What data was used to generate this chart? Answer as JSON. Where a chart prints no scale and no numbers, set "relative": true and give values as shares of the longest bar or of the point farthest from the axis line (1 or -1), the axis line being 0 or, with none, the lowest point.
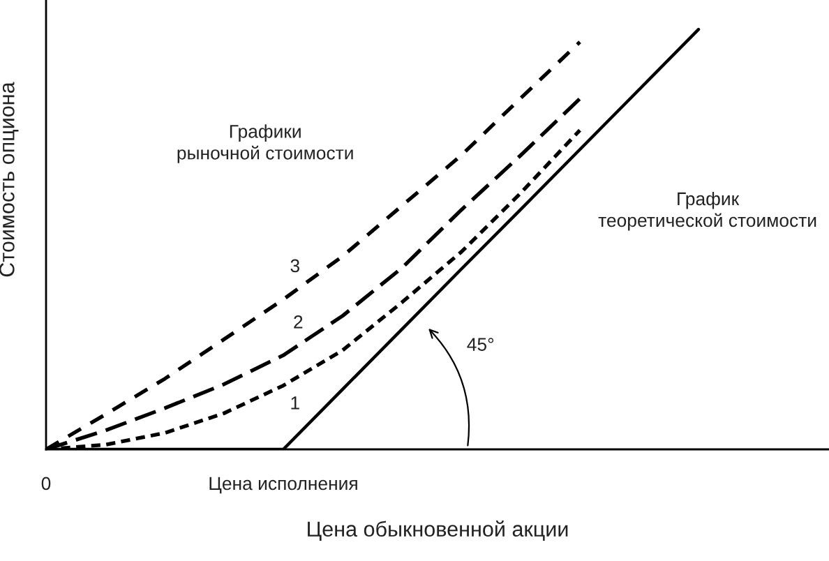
{
  "chart_data": {
    "type": "line",
    "relative": true,
    "xlabel": "Цена обыкновенной акции",
    "ylabel": "Стоимость опциона",
    "categories": [
      "0",
      null,
      null,
      null,
      "Цена исполнения",
      null,
      null,
      null,
      null,
      null,
      null,
      null,
      null,
      null
    ],
    "tick_labels": "x",
    "grid": false,
    "legend": false,
    "marker": "none",
    "series": [
      {
        "name": "3",
        "color": "#000000",
        "line_style": "dashed",
        "values": [
          0,
          0.083,
          0.168,
          0.262,
          0.357,
          0.46,
          0.58,
          0.7,
          0.836,
          0.97,
          null,
          null,
          null,
          null
        ]
      },
      {
        "name": "2",
        "color": "#000000",
        "line_style": "dashed",
        "values": [
          0,
          0.045,
          0.098,
          0.155,
          0.224,
          0.318,
          0.432,
          0.57,
          0.7,
          0.835,
          null,
          null,
          null,
          null
        ]
      },
      {
        "name": "1",
        "color": "#000000",
        "line_style": "dashed",
        "values": [
          0,
          0.011,
          0.039,
          0.086,
          0.152,
          0.236,
          0.35,
          0.47,
          0.61,
          0.76,
          null,
          null,
          null,
          null
        ]
      },
      {
        "name": "График\nтеоретической стоимости",
        "color": "#000000",
        "line_style": "solid",
        "values": [
          0,
          0,
          0,
          0,
          0,
          0.143,
          0.286,
          0.429,
          0.571,
          0.714,
          0.857,
          1,
          null,
          null
        ]
      }
    ],
    "annotations": [
      "Графики\nрыночной стоимости",
      "45°"
    ]
  }
}
